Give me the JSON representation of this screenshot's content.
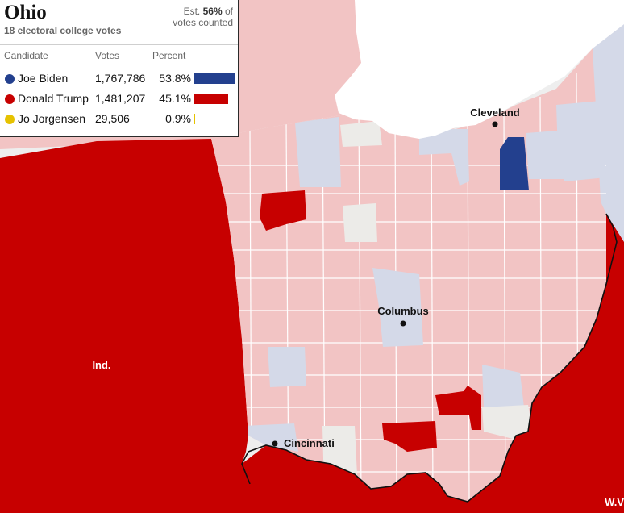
{
  "panel": {
    "state": "Ohio",
    "electoral_votes": "18 electoral college votes",
    "est_prefix": "Est.",
    "est_pct": "56%",
    "est_suffix_1": "of",
    "est_suffix_2": "votes counted",
    "headers": {
      "candidate": "Candidate",
      "votes": "Votes",
      "percent": "Percent"
    }
  },
  "candidates": [
    {
      "name": "Joe Biden",
      "votes": "1,767,786",
      "percent": "53.8%",
      "share": 0.538,
      "color": "#23408e"
    },
    {
      "name": "Donald Trump",
      "votes": "1,481,207",
      "percent": "45.1%",
      "share": 0.451,
      "color": "#c70000"
    },
    {
      "name": "Jo Jorgensen",
      "votes": "29,506",
      "percent": "0.9%",
      "share": 0.009,
      "color": "#e6c200"
    }
  ],
  "map": {
    "state_labels": {
      "indiana": "Ind.",
      "west_virginia": "W.V"
    },
    "cities": {
      "cleveland": "Cleveland",
      "columbus": "Columbus",
      "cincinnati": "Cincinnati"
    },
    "colors": {
      "trump_win": "#c70000",
      "trump_flip": "#c70000",
      "biden_flip": "#23408e",
      "trump_lead": "#f2c4c4",
      "biden_lead": "#d4d9e8",
      "no_result": "#ecebe8",
      "lake": "#ffffff",
      "outside": "#eeeeee"
    }
  }
}
